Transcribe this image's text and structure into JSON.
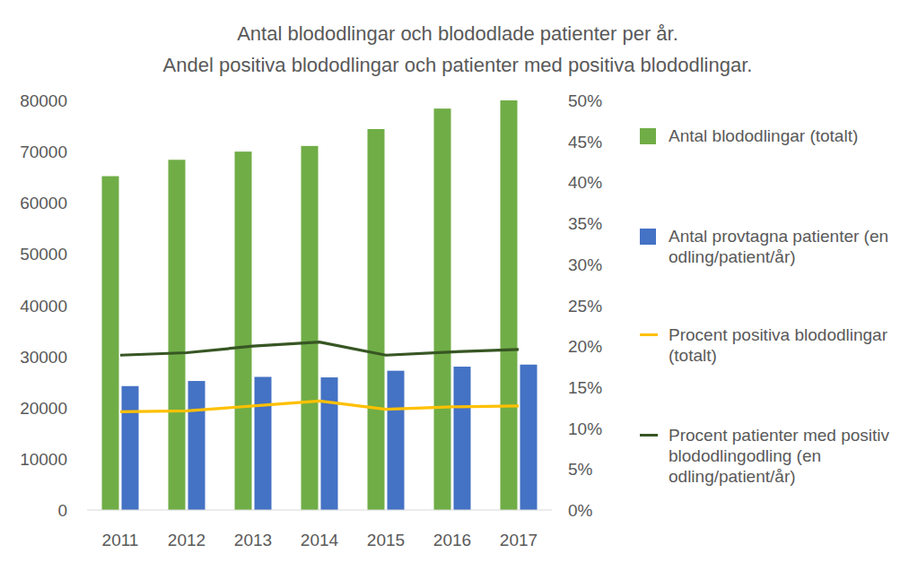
{
  "chart_data": {
    "type": "bar",
    "title": "Antal blododlingar och blododlade patienter per år.",
    "subtitle": "Andel positiva blododlingar och patienter med positiva blododlingar.",
    "categories": [
      "2011",
      "2012",
      "2013",
      "2014",
      "2015",
      "2016",
      "2017"
    ],
    "series": [
      {
        "name": "Antal blododlingar (totalt)",
        "color": "#70ad47",
        "values": [
          65200,
          68400,
          70000,
          71100,
          74400,
          78400,
          80000
        ]
      },
      {
        "name": "Antal provtagna patienter (en odling/patient/år)",
        "color": "#4472c4",
        "values": [
          24200,
          25200,
          26000,
          25900,
          27200,
          28000,
          28400
        ]
      },
      {
        "name": "Procent positiva blododlingar (totalt)",
        "color": "#ffc000",
        "type": "line",
        "axis": "y2",
        "values": [
          12.0,
          12.1,
          12.7,
          13.3,
          12.3,
          12.6,
          12.7
        ]
      },
      {
        "name": "Procent patienter med positiv blododlingodling (en odling/patient/år)",
        "color": "#375623",
        "type": "line",
        "axis": "y2",
        "values": [
          18.9,
          19.2,
          20.0,
          20.5,
          18.9,
          19.3,
          19.6
        ]
      }
    ],
    "ylim": [
      0,
      80000
    ],
    "yticks": [
      0,
      10000,
      20000,
      30000,
      40000,
      50000,
      60000,
      70000,
      80000
    ],
    "y2lim": [
      0,
      50
    ],
    "y2ticks": [
      {
        "value": 0,
        "label": "0%"
      },
      {
        "value": 5,
        "label": "5%"
      },
      {
        "value": 10,
        "label": "10%"
      },
      {
        "value": 15,
        "label": "15%"
      },
      {
        "value": 20,
        "label": "20%"
      },
      {
        "value": 25,
        "label": "25%"
      },
      {
        "value": 30,
        "label": "30%"
      },
      {
        "value": 35,
        "label": "35%"
      },
      {
        "value": 40,
        "label": "40%"
      },
      {
        "value": 45,
        "label": "45%"
      },
      {
        "value": 50,
        "label": "50%"
      }
    ],
    "grid": false,
    "legend": "right"
  }
}
